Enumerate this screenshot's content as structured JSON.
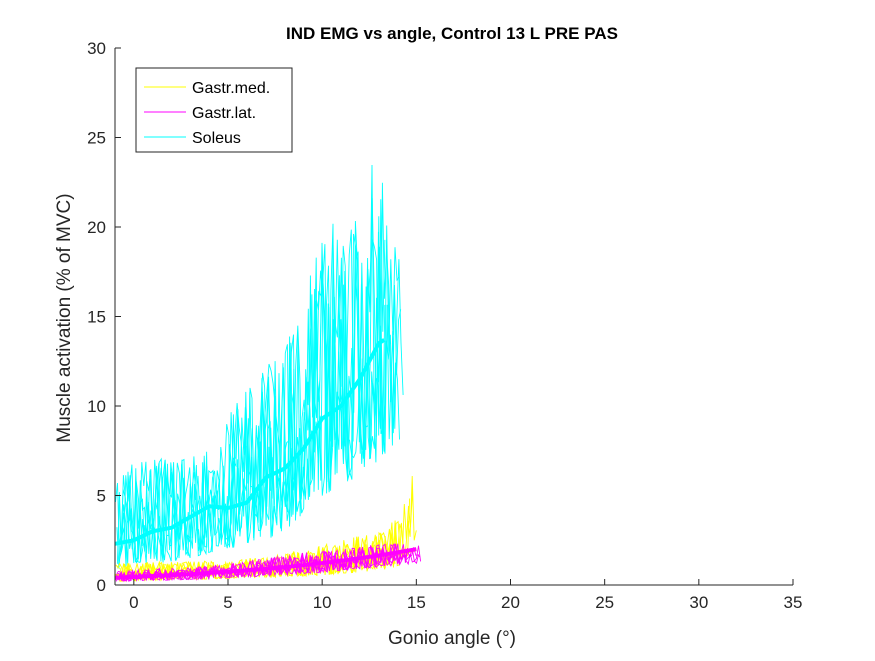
{
  "chart_data": {
    "type": "line",
    "title": "IND EMG vs angle, Control 13 L PRE PAS",
    "xlabel": "Gonio angle (°)",
    "ylabel": "Muscle activation (% of MVC)",
    "xlim": [
      -1,
      35
    ],
    "ylim": [
      0,
      30
    ],
    "xticks": [
      0,
      5,
      10,
      15,
      20,
      25,
      30,
      35
    ],
    "yticks": [
      0,
      5,
      10,
      15,
      20,
      25,
      30
    ],
    "grid": false,
    "legend_position": "top-left",
    "series": [
      {
        "name": "Gastr.med.",
        "color": "#ffff00",
        "mean": [
          [
            -1,
            0.5
          ],
          [
            1,
            0.6
          ],
          [
            3,
            0.65
          ],
          [
            5,
            0.75
          ],
          [
            7,
            0.85
          ],
          [
            9,
            1.0
          ],
          [
            11,
            1.2
          ],
          [
            13,
            1.5
          ],
          [
            15,
            2.0
          ]
        ],
        "trial_bands": [
          {
            "x": [
              -1,
              1,
              3,
              5,
              7,
              9,
              11,
              13,
              14,
              14.5,
              15,
              15.5
            ],
            "low": [
              0.2,
              0.25,
              0.3,
              0.35,
              0.4,
              0.5,
              0.6,
              0.8,
              1.0,
              1.5,
              2.0,
              3.0
            ],
            "high": [
              1.2,
              1.3,
              1.3,
              1.4,
              1.6,
              2.0,
              2.5,
              3.0,
              4.0,
              5.5,
              7.5,
              8.5
            ]
          }
        ]
      },
      {
        "name": "Gastr.lat.",
        "color": "#ff00ff",
        "mean": [
          [
            -1,
            0.4
          ],
          [
            1,
            0.5
          ],
          [
            3,
            0.6
          ],
          [
            5,
            0.75
          ],
          [
            7,
            0.9
          ],
          [
            9,
            1.1
          ],
          [
            11,
            1.35
          ],
          [
            13,
            1.65
          ],
          [
            15,
            2.0
          ]
        ],
        "trial_bands": [
          {
            "x": [
              -1,
              1,
              3,
              5,
              7,
              9,
              11,
              13,
              15,
              15.5
            ],
            "low": [
              0.2,
              0.25,
              0.3,
              0.4,
              0.5,
              0.6,
              0.8,
              1.0,
              1.2,
              1.3
            ],
            "high": [
              0.8,
              0.9,
              1.0,
              1.2,
              1.5,
              1.8,
              2.0,
              2.3,
              2.4,
              2.0
            ]
          }
        ]
      },
      {
        "name": "Soleus",
        "color": "#00ffff",
        "mean": [
          [
            -1,
            2.3
          ],
          [
            0,
            2.5
          ],
          [
            1,
            3.0
          ],
          [
            2,
            3.2
          ],
          [
            3,
            3.8
          ],
          [
            4,
            4.4
          ],
          [
            5,
            4.3
          ],
          [
            6,
            4.6
          ],
          [
            7,
            6.0
          ],
          [
            8,
            6.5
          ],
          [
            9,
            7.6
          ],
          [
            10,
            9.3
          ],
          [
            11,
            10.0
          ],
          [
            12,
            11.5
          ],
          [
            13,
            13.5
          ],
          [
            13.3,
            13.7
          ]
        ],
        "trial_bands": [
          {
            "x": [
              -1,
              0,
              1,
              2,
              3,
              4,
              5,
              6,
              7,
              8,
              9,
              10,
              11,
              12,
              13,
              14,
              15,
              15.3
            ],
            "low": [
              0.5,
              1.0,
              1.2,
              1.3,
              1.5,
              1.8,
              2.0,
              2.3,
              2.5,
              3.0,
              4.0,
              4.8,
              5.5,
              6.0,
              7.0,
              8.0,
              9.0,
              10.0
            ],
            "high": [
              6.0,
              7.5,
              7.5,
              7.0,
              7.2,
              7.5,
              9.5,
              11.0,
              12.5,
              14.0,
              15.0,
              21.5,
              19.5,
              22.0,
              25.5,
              19.0,
              15.5,
              12.0
            ]
          }
        ]
      }
    ]
  }
}
